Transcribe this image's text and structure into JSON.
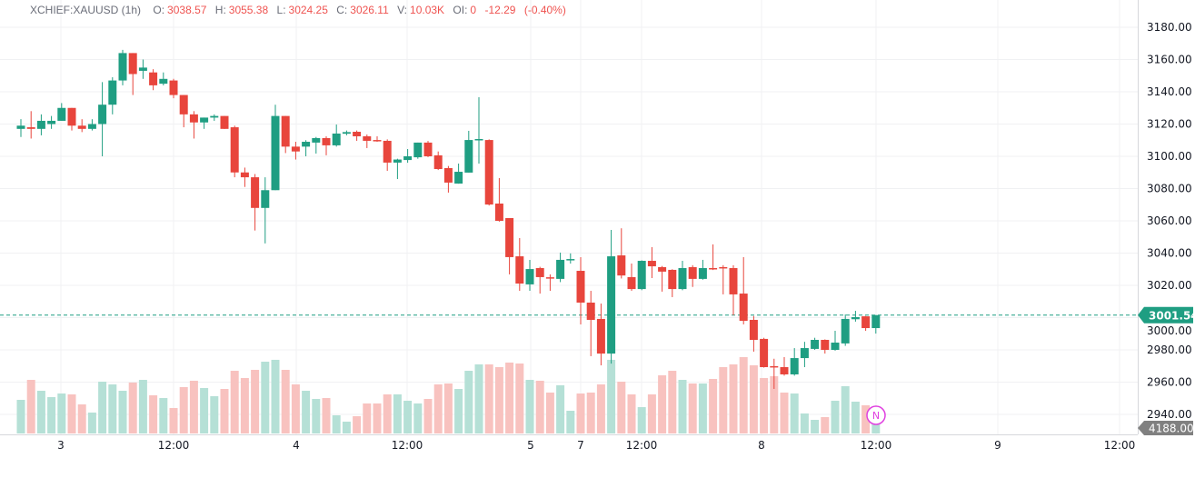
{
  "legend": {
    "symbol": "XCHIEF:XAUUSD (1h)",
    "open_label": "O:",
    "open": "3038.57",
    "high_label": "H:",
    "high": "3055.38",
    "low_label": "L:",
    "low": "3024.25",
    "close_label": "C:",
    "close": "3026.11",
    "volume_label": "V:",
    "volume": "10.03K",
    "oi_label": "OI:",
    "oi": "0",
    "change": "-12.29",
    "change_pct": "(-0.40%)"
  },
  "colors": {
    "up": "#1f9e82",
    "down": "#e8453c",
    "up_volume": "#b5e0d6",
    "down_volume": "#f8c2bf",
    "last_price": "#1f9e82",
    "volume_tag": "#808080",
    "marker": "#e040e0"
  },
  "chart_data": {
    "type": "candlestick",
    "title": "",
    "grid": true,
    "ylim": [
      2930,
      3190
    ],
    "y_ticks": [
      "3180.00",
      "3160.00",
      "3140.00",
      "3120.00",
      "3100.00",
      "3080.00",
      "3060.00",
      "3040.00",
      "3020.00",
      "3000.00",
      "2980.00",
      "2960.00",
      "2940.00"
    ],
    "x_ticks": [
      "3",
      "12:00",
      "4",
      "12:00",
      "5",
      "7",
      "12:00",
      "8",
      "12:00",
      "9",
      "12:00"
    ],
    "last_price_label": "3001.54",
    "last_volume_label": "4188.00",
    "marker_label": "N",
    "ohlc": [
      [
        3117,
        3123,
        3112,
        3119
      ],
      [
        3118,
        3128,
        3111,
        3117
      ],
      [
        3117,
        3126,
        3113,
        3122
      ],
      [
        3120,
        3125,
        3117,
        3122
      ],
      [
        3122,
        3133,
        3122,
        3130
      ],
      [
        3130,
        3130,
        3116,
        3119
      ],
      [
        3119,
        3123,
        3115,
        3117
      ],
      [
        3117,
        3123,
        3116,
        3120
      ],
      [
        3120,
        3146,
        3100,
        3132
      ],
      [
        3132,
        3149,
        3126,
        3147
      ],
      [
        3147,
        3166,
        3144,
        3164
      ],
      [
        3164,
        3164,
        3138,
        3151
      ],
      [
        3153,
        3160,
        3148,
        3155
      ],
      [
        3152,
        3154,
        3141,
        3144
      ],
      [
        3145,
        3152,
        3144,
        3148
      ],
      [
        3147,
        3148,
        3136,
        3138
      ],
      [
        3138,
        3138,
        3118,
        3126
      ],
      [
        3126,
        3128,
        3111,
        3121
      ],
      [
        3121,
        3124,
        3117,
        3124
      ],
      [
        3124,
        3126,
        3122,
        3125
      ],
      [
        3125,
        3125,
        3117,
        3117
      ],
      [
        3118,
        3119,
        3087,
        3090
      ],
      [
        3090,
        3093,
        3081,
        3087
      ],
      [
        3087,
        3089,
        3054,
        3068
      ],
      [
        3068,
        3087,
        3046,
        3079
      ],
      [
        3079,
        3132,
        3079,
        3125
      ],
      [
        3125,
        3125,
        3102,
        3106
      ],
      [
        3106,
        3109,
        3098,
        3103
      ],
      [
        3106,
        3110,
        3100,
        3109
      ],
      [
        3108.5,
        3112,
        3101.7,
        3111.3
      ],
      [
        3111.3,
        3112.4,
        3100.6,
        3106.8
      ],
      [
        3106.8,
        3119.7,
        3106,
        3114.1
      ],
      [
        3114,
        3116,
        3113,
        3115
      ],
      [
        3115.2,
        3116,
        3109.6,
        3112.4
      ],
      [
        3112.4,
        3113.5,
        3105.1,
        3109.6
      ],
      [
        3110.1,
        3112.4,
        3109,
        3109.8
      ],
      [
        3109.6,
        3110.5,
        3091,
        3096.1
      ],
      [
        3096.1,
        3098.5,
        3085.9,
        3098
      ],
      [
        3097.7,
        3104.5,
        3096,
        3100
      ],
      [
        3099.4,
        3108.5,
        3098.5,
        3108.5
      ],
      [
        3108.5,
        3109.5,
        3099.5,
        3100
      ],
      [
        3100.6,
        3103,
        3091.5,
        3092.1
      ],
      [
        3092.7,
        3094,
        3077.5,
        3083.7
      ],
      [
        3083.1,
        3095.5,
        3083,
        3090.4
      ],
      [
        3089.9,
        3115.8,
        3089.9,
        3110.1
      ],
      [
        3110,
        3136.6,
        3095.5,
        3110.7
      ],
      [
        3110.1,
        3110.5,
        3069.5,
        3070.1
      ],
      [
        3070.7,
        3086.5,
        3059.5,
        3060
      ],
      [
        3061.7,
        3061.7,
        3026.8,
        3037.5
      ],
      [
        3038,
        3049.3,
        3016.6,
        3021.1
      ],
      [
        3020.6,
        3035.8,
        3016.6,
        3030.1
      ],
      [
        3030.7,
        3031.5,
        3014.9,
        3025.1
      ],
      [
        3025,
        3026.8,
        3016.6,
        3024.5
      ],
      [
        3024,
        3040.3,
        3022,
        3035.8
      ],
      [
        3035.8,
        3039.8,
        3033.5,
        3036.3
      ],
      [
        3029,
        3037.5,
        2995.8,
        3009.3
      ],
      [
        3009.3,
        3016.6,
        2976.1,
        2998.6
      ],
      [
        2999.2,
        3008.7,
        2970.4,
        2977.7
      ],
      [
        2977.7,
        3054.4,
        2971.5,
        3038
      ],
      [
        3038.57,
        3055.38,
        3024.25,
        3026.11
      ],
      [
        3025.1,
        3033.5,
        3016.6,
        3017.7
      ],
      [
        3017.7,
        3035.5,
        3017,
        3035.2
      ],
      [
        3035.2,
        3043.7,
        3024.5,
        3031.8
      ],
      [
        3031.3,
        3032,
        3016.1,
        3028.5
      ],
      [
        3029.6,
        3030,
        3012.7,
        3017.7
      ],
      [
        3017.7,
        3035.2,
        3017,
        3030.7
      ],
      [
        3031.3,
        3032.5,
        3019,
        3024
      ],
      [
        3024,
        3035.8,
        3023.5,
        3030.7
      ],
      [
        3030.7,
        3045.4,
        3029.5,
        3030.2
      ],
      [
        3031.3,
        3032.5,
        3014.4,
        3030.7
      ],
      [
        3030.7,
        3032.5,
        3001.4,
        3014.4
      ],
      [
        3014.9,
        3037.5,
        2995.8,
        2998
      ],
      [
        2998.6,
        3001,
        2978.9,
        2986.2
      ],
      [
        2986.8,
        2987.5,
        2969,
        2969.3
      ],
      [
        2969.9,
        2974.5,
        2955.8,
        2969.3
      ],
      [
        2969.3,
        2975.5,
        2964,
        2964.8
      ],
      [
        2964.8,
        2981.1,
        2964,
        2974.9
      ],
      [
        2974.9,
        2985,
        2969.3,
        2981.1
      ],
      [
        2980.6,
        2987.5,
        2980,
        2986.2
      ],
      [
        2986.2,
        2986.5,
        2977.7,
        2980
      ],
      [
        2980,
        2991.8,
        2979.5,
        2984.5
      ],
      [
        2984,
        3002,
        2982.5,
        2999.2
      ],
      [
        2999,
        3004.2,
        2997.5,
        3000.3
      ],
      [
        3000.8,
        3001,
        2991.8,
        2993.5
      ],
      [
        2993.5,
        3001.54,
        2990.1,
        3001.54
      ]
    ],
    "volume": [
      6510,
      10380,
      8270,
      7040,
      7740,
      7570,
      5630,
      4050,
      10030,
      9500,
      8270,
      9860,
      10380,
      7390,
      6860,
      4930,
      8980,
      10210,
      8800,
      7220,
      8620,
      12140,
      10740,
      12320,
      13900,
      14260,
      12320,
      9500,
      8270,
      6690,
      6860,
      3520,
      2290,
      3340,
      5810,
      5810,
      7570,
      7570,
      6340,
      5810,
      6690,
      9500,
      9680,
      8620,
      12140,
      13380,
      13380,
      12850,
      13730,
      13550,
      10380,
      10210,
      7920,
      9330,
      4400,
      7740,
      7920,
      9500,
      14260,
      10030,
      7570,
      5100,
      7570,
      11260,
      12140,
      10380,
      9680,
      9680,
      10560,
      12850,
      13380,
      14780,
      13200,
      10740,
      11090,
      7920,
      7740,
      3870,
      2640,
      3170,
      6340,
      9150,
      6160,
      5460,
      4188
    ]
  }
}
